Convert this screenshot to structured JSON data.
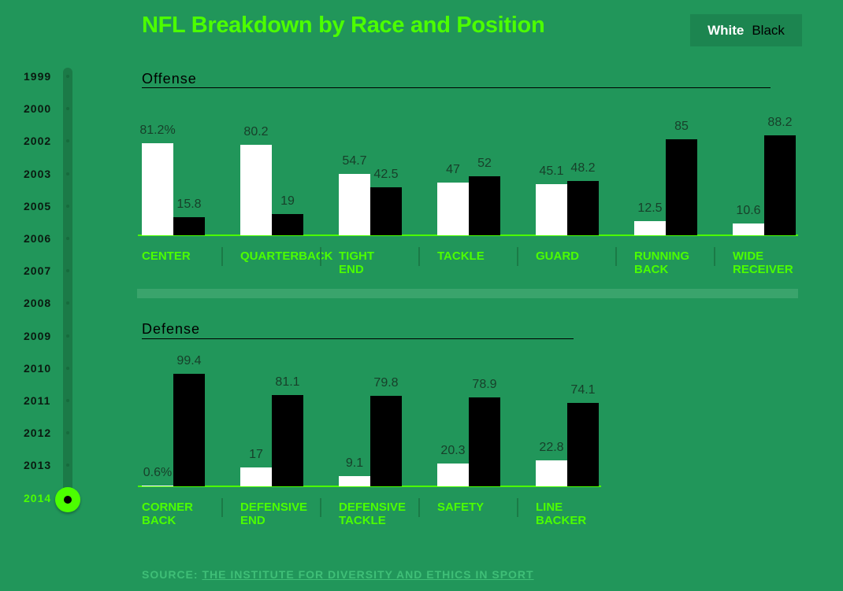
{
  "title": "NFL Breakdown by Race and Position",
  "legend": {
    "white": "White",
    "black": "Black"
  },
  "timeline": {
    "years": [
      "1999",
      "2000",
      "2002",
      "2003",
      "2005",
      "2006",
      "2007",
      "2008",
      "2009",
      "2010",
      "2011",
      "2012",
      "2013",
      "2014"
    ],
    "selected": "2014"
  },
  "source": {
    "prefix": "SOURCE:",
    "link": "THE INSTITUTE FOR DIVERSITY AND ETHICS IN SPORT"
  },
  "colors": {
    "white": "#ffffff",
    "black": "#000000",
    "accent": "#4cff00",
    "background": "#21965a"
  },
  "chart_data": [
    {
      "type": "bar",
      "title": "Offense",
      "series_names": [
        "White",
        "Black"
      ],
      "unit": "%",
      "categories": [
        [
          "CENTER"
        ],
        [
          "QUARTERBACK"
        ],
        [
          "TIGHT",
          "END"
        ],
        [
          "TACKLE"
        ],
        [
          "GUARD"
        ],
        [
          "RUNNING",
          "BACK"
        ],
        [
          "WIDE",
          "RECEIVER"
        ]
      ],
      "white": [
        81.2,
        80.2,
        54.7,
        47,
        45.1,
        12.5,
        10.6
      ],
      "black": [
        15.8,
        19,
        42.5,
        52,
        48.2,
        85,
        88.2
      ],
      "white_labels": [
        "81.2%",
        "80.2",
        "54.7",
        "47",
        "45.1",
        "12.5",
        "10.6"
      ],
      "black_labels": [
        "15.8",
        "19",
        "42.5",
        "52",
        "48.2",
        "85",
        "88.2"
      ]
    },
    {
      "type": "bar",
      "title": "Defense",
      "series_names": [
        "White",
        "Black"
      ],
      "unit": "%",
      "categories": [
        [
          "CORNER",
          "BACK"
        ],
        [
          "DEFENSIVE",
          "END"
        ],
        [
          "DEFENSIVE",
          "TACKLE"
        ],
        [
          "SAFETY"
        ],
        [
          "LINE",
          "BACKER"
        ]
      ],
      "white": [
        0.6,
        17,
        9.1,
        20.3,
        22.8
      ],
      "black": [
        99.4,
        81.1,
        79.8,
        78.9,
        74.1
      ],
      "white_labels": [
        "0.6%",
        "17",
        "9.1",
        "20.3",
        "22.8"
      ],
      "black_labels": [
        "99.4",
        "81.1",
        "79.8",
        "78.9",
        "74.1"
      ]
    }
  ]
}
